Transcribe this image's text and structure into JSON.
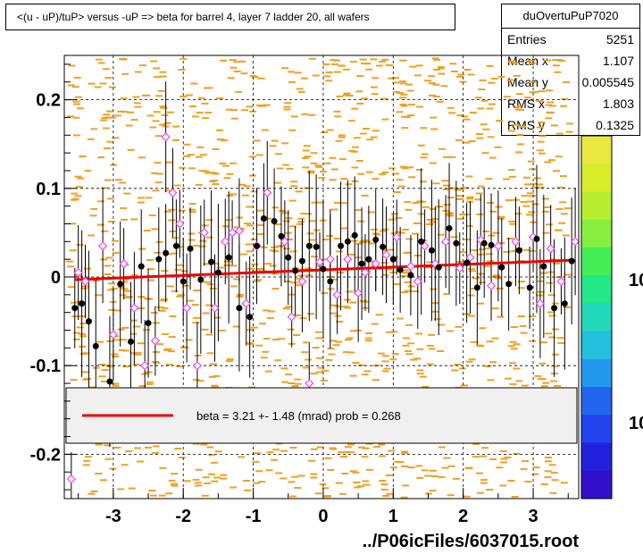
{
  "title": "<(u - uP)/tuP> versus  -uP => beta for barrel 4, layer 7 ladder 20, all wafers",
  "stats": {
    "name": "duOvertuPuP7020",
    "rows": [
      {
        "label": "Entries",
        "value": "5251"
      },
      {
        "label": "Mean x",
        "value": "1.107"
      },
      {
        "label": "Mean y",
        "value": "0.005545"
      },
      {
        "label": "RMS x",
        "value": "1.803"
      },
      {
        "label": "RMS y",
        "value": "0.1325"
      }
    ]
  },
  "footer": "../P06icFiles/6037015.root",
  "colorbar_labels": [
    "10",
    "10"
  ],
  "colors": {
    "hist": "#f0a020",
    "fit": "#ee0000",
    "profile_black": "#000000",
    "profile_magenta": "#ee44ee"
  },
  "chart_data": {
    "type": "scatter",
    "xlim": [
      -3.7,
      3.65
    ],
    "ylim": [
      -0.25,
      0.25
    ],
    "x_ticks": [
      -3,
      -2,
      -1,
      0,
      1,
      2,
      3
    ],
    "y_ticks": [
      -0.2,
      -0.1,
      0,
      0.1,
      0.2
    ],
    "x_tick_labels": [
      "-3",
      "-2",
      "-1",
      "0",
      "1",
      "2",
      "3"
    ],
    "y_tick_labels": [
      "-0.2",
      "-0.1",
      "0",
      "0.1",
      "0.2"
    ],
    "grid": true,
    "fit_line": {
      "x": [
        -3.55,
        3.55
      ],
      "y": [
        -0.003,
        0.019
      ]
    },
    "legend_text": "beta =    3.21 +-  1.48 (mrad) prob = 0.268",
    "series_black": {
      "x": [
        -3.55,
        -3.45,
        -3.35,
        -3.25,
        -3.05,
        -2.9,
        -2.75,
        -2.6,
        -2.5,
        -2.35,
        -2.25,
        -2.1,
        -2.0,
        -1.9,
        -1.75,
        -1.6,
        -1.5,
        -1.35,
        -1.2,
        -1.05,
        -0.95,
        -0.85,
        -0.7,
        -0.6,
        -0.5,
        -0.4,
        -0.3,
        -0.2,
        -0.1,
        0.0,
        0.1,
        0.25,
        0.35,
        0.45,
        0.55,
        0.65,
        0.75,
        0.85,
        1.0,
        1.1,
        1.25,
        1.4,
        1.55,
        1.65,
        1.8,
        1.9,
        2.05,
        2.2,
        2.3,
        2.4,
        2.55,
        2.65,
        2.8,
        2.95,
        3.05,
        3.15,
        3.3,
        3.45,
        3.55
      ],
      "y": [
        -0.035,
        -0.03,
        -0.05,
        -0.078,
        -0.118,
        -0.008,
        -0.073,
        0.012,
        -0.052,
        0.02,
        0.027,
        0.035,
        -0.005,
        0.032,
        -0.003,
        0.017,
        0.005,
        0.022,
        -0.035,
        -0.045,
        0.035,
        0.066,
        0.063,
        0.046,
        0.022,
        0.007,
        0.018,
        0.035,
        0.034,
        0.009,
        -0.005,
        0.035,
        0.04,
        0.047,
        0.015,
        0.02,
        0.042,
        0.034,
        0.02,
        0.008,
        0.002,
        0.04,
        0.03,
        0.011,
        0.055,
        0.038,
        0.016,
        -0.012,
        0.038,
        0.036,
        0.011,
        -0.008,
        0.03,
        -0.012,
        0.043,
        0.012,
        -0.035,
        -0.03,
        0.018
      ]
    },
    "series_magenta": {
      "x": [
        -3.6,
        -3.5,
        -3.4,
        -3.15,
        -3.0,
        -2.85,
        -2.7,
        -2.55,
        -2.4,
        -2.25,
        -2.15,
        -2.05,
        -1.95,
        -1.8,
        -1.7,
        -1.55,
        -1.4,
        -1.3,
        -1.2,
        -1.1,
        -0.95,
        -0.8,
        -0.55,
        -0.45,
        -0.3,
        -0.2,
        -0.05,
        0.1,
        0.2,
        0.35,
        0.5,
        0.6,
        0.75,
        0.9,
        1.05,
        1.25,
        1.35,
        1.45,
        1.6,
        1.75,
        1.95,
        2.1,
        2.25,
        2.4,
        2.5,
        2.75,
        3.0,
        3.1,
        3.25,
        3.4,
        3.6
      ],
      "y": [
        -0.228,
        0.005,
        -0.005,
        0.035,
        -0.065,
        0.015,
        -0.035,
        -0.1,
        -0.072,
        0.158,
        0.095,
        0.06,
        -0.035,
        -0.1,
        0.05,
        -0.035,
        0.04,
        0.05,
        0.052,
        -0.03,
        0.035,
        0.095,
        0.04,
        -0.045,
        -0.005,
        -0.12,
        0.017,
        0.02,
        -0.02,
        0.02,
        -0.018,
        0.005,
        0.015,
        0.025,
        0.045,
        0.012,
        -0.005,
        0.035,
        0.015,
        0.04,
        0.01,
        0.022,
        0.042,
        -0.01,
        0.035,
        0.04,
        0.045,
        -0.03,
        0.032,
        -0.005,
        0.04
      ]
    }
  }
}
